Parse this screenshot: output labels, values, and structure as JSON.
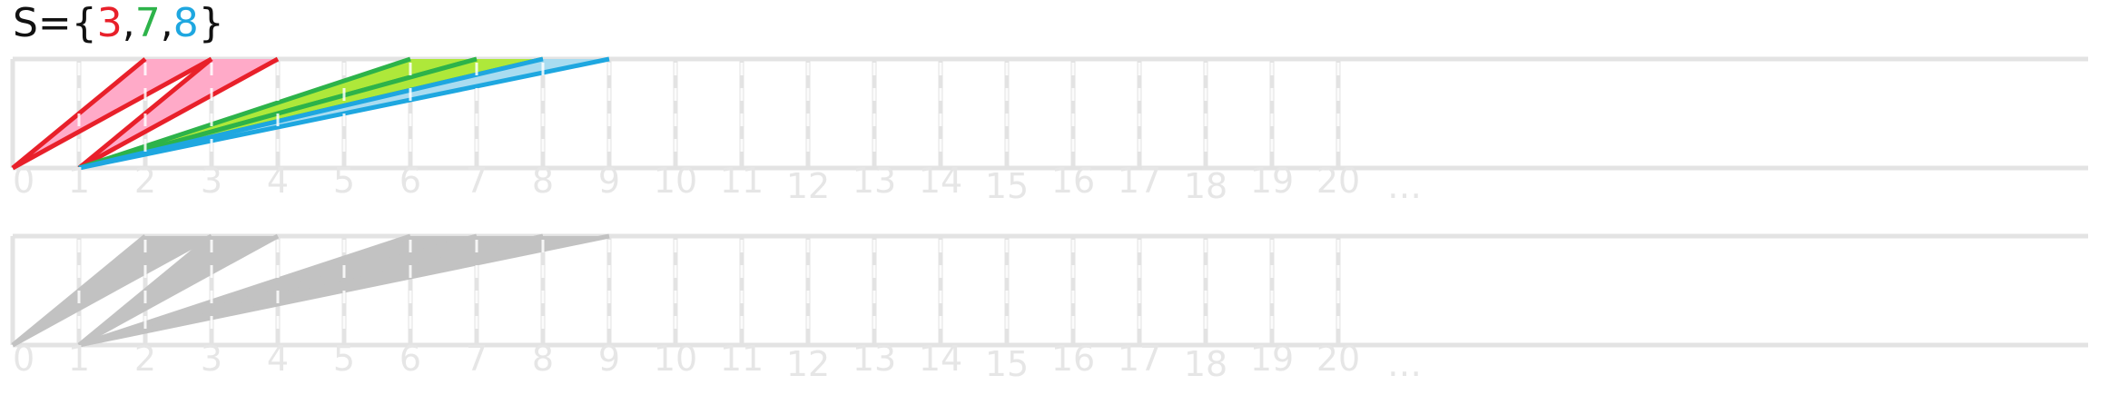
{
  "title": {
    "prefix": "S={",
    "suffix": "}",
    "separator": ",",
    "elements": [
      {
        "value": "3",
        "color": "#e8202a"
      },
      {
        "value": "7",
        "color": "#2db34a"
      },
      {
        "value": "8",
        "color": "#1ea7e0"
      }
    ]
  },
  "scale": {
    "ticks": [
      "0",
      "1",
      "2",
      "3",
      "4",
      "5",
      "6",
      "7",
      "8",
      "9",
      "10",
      "11",
      "12",
      "13",
      "14",
      "15",
      "16",
      "17",
      "18",
      "19",
      "20",
      "…"
    ],
    "grid_color": "#e3e3e3",
    "label_color": "#e6e6e6"
  },
  "diagrams": [
    {
      "name": "colored",
      "bands": [
        {
          "set_value": 3,
          "start": 0,
          "from": 0,
          "to": 3,
          "fill": "#ffaac8",
          "line": "#e8202a"
        },
        {
          "set_value": 3,
          "start": 1,
          "from": 1,
          "to": 4,
          "fill": "#ffaac8",
          "line": "#e8202a"
        },
        {
          "set_value": 7,
          "start": 1,
          "from": 0,
          "to": 7,
          "fill": "#aee83a",
          "line": "#2db34a"
        },
        {
          "set_value": 7,
          "start": 1,
          "from": 1,
          "to": 8,
          "fill": "#aee83a",
          "line": "#2db34a"
        },
        {
          "set_value": 8,
          "start": 1,
          "from": 1,
          "to": 9,
          "fill": "#a9dcf0",
          "line": "#1ea7e0"
        }
      ]
    },
    {
      "name": "gray",
      "bands": [
        {
          "start": 0,
          "from": 0,
          "to": 3,
          "fill": "#c2c2c2",
          "line": "#c2c2c2"
        },
        {
          "start": 1,
          "from": 1,
          "to": 4,
          "fill": "#c2c2c2",
          "line": "#c2c2c2"
        },
        {
          "start": 1,
          "from": 0,
          "to": 7,
          "fill": "#c2c2c2",
          "line": "#c2c2c2"
        },
        {
          "start": 1,
          "from": 1,
          "to": 8,
          "fill": "#c2c2c2",
          "line": "#c2c2c2"
        },
        {
          "start": 1,
          "from": 1,
          "to": 9,
          "fill": "#c2c2c2",
          "line": "#c2c2c2"
        }
      ]
    }
  ]
}
